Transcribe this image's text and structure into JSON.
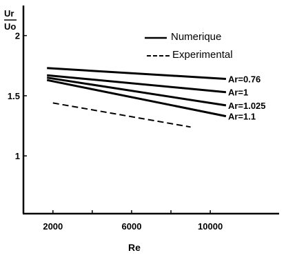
{
  "chart_data": {
    "type": "line",
    "ylabel_num": "Ur",
    "ylabel_den": "Uo",
    "xlabel": "Re",
    "xlim": [
      500,
      13500
    ],
    "ylim": [
      0.52,
      2.25
    ],
    "x_ticks": [
      2000,
      6000,
      10000
    ],
    "x_tick_labels": [
      "2000",
      "6000",
      "10000"
    ],
    "x_minor_ticks": [
      4000,
      8000
    ],
    "y_ticks": [
      1,
      1.5,
      2
    ],
    "y_tick_labels": [
      "1",
      "1.5",
      "2"
    ],
    "legend": {
      "position": "top-right",
      "entries": [
        {
          "label": "Numerique",
          "style": "solid"
        },
        {
          "label": "Experimental",
          "style": "dashed"
        }
      ]
    },
    "series": [
      {
        "name": "Ar=0.76",
        "style": "solid",
        "x": [
          1700,
          10800
        ],
        "y": [
          1.73,
          1.64
        ]
      },
      {
        "name": "Ar=1",
        "style": "solid",
        "x": [
          1700,
          10800
        ],
        "y": [
          1.67,
          1.53
        ]
      },
      {
        "name": "Ar=1.025",
        "style": "solid",
        "x": [
          1700,
          10800
        ],
        "y": [
          1.65,
          1.42
        ]
      },
      {
        "name": "Ar=1.1",
        "style": "solid",
        "x": [
          1700,
          10800
        ],
        "y": [
          1.63,
          1.33
        ]
      },
      {
        "name": "",
        "style": "dashed",
        "x": [
          2000,
          9000
        ],
        "y": [
          1.44,
          1.24
        ]
      }
    ]
  }
}
